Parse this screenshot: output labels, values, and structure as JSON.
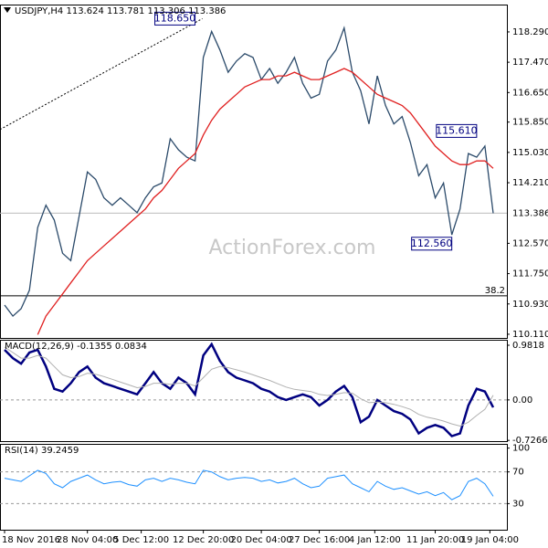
{
  "chart_data": [
    {
      "type": "line",
      "title": "USDJPY,H4  113.624 113.781 113.306 113.386",
      "watermark": "ActionForex.com",
      "xlim": [
        0,
        59
      ],
      "ylim": [
        110.01,
        119.03
      ],
      "yticks": [
        {
          "value": 118.29,
          "label": "118.290"
        },
        {
          "value": 117.47,
          "label": "117.470"
        },
        {
          "value": 116.65,
          "label": "116.650"
        },
        {
          "value": 115.85,
          "label": "115.850"
        },
        {
          "value": 115.03,
          "label": "115.030"
        },
        {
          "value": 114.21,
          "label": "114.210"
        },
        {
          "value": 112.57,
          "label": "112.570"
        },
        {
          "value": 111.75,
          "label": "111.750"
        },
        {
          "value": 110.93,
          "label": "110.930"
        },
        {
          "value": 110.11,
          "label": "110.110"
        }
      ],
      "series": [
        {
          "name": "Close",
          "color": "#2b4a6a",
          "values": [
            110.9,
            110.6,
            110.8,
            111.3,
            113.0,
            113.6,
            113.2,
            112.3,
            112.1,
            113.3,
            114.5,
            114.3,
            113.8,
            113.6,
            113.8,
            113.6,
            113.4,
            113.8,
            114.1,
            114.2,
            115.4,
            115.1,
            114.9,
            114.8,
            117.6,
            118.3,
            117.8,
            117.2,
            117.5,
            117.7,
            117.6,
            117.0,
            117.3,
            116.9,
            117.2,
            117.6,
            116.9,
            116.5,
            116.6,
            117.5,
            117.8,
            118.4,
            117.2,
            116.7,
            115.8,
            117.1,
            116.3,
            115.8,
            116.0,
            115.3,
            114.4,
            114.7,
            113.8,
            114.2,
            112.8,
            113.5,
            115.0,
            114.9,
            115.2,
            113.386
          ]
        },
        {
          "name": "MA",
          "color": "#e02020",
          "values": [
            null,
            null,
            null,
            null,
            110.1,
            110.6,
            110.9,
            111.2,
            111.5,
            111.8,
            112.1,
            112.3,
            112.5,
            112.7,
            112.9,
            113.1,
            113.3,
            113.5,
            113.8,
            114.0,
            114.3,
            114.6,
            114.8,
            115.0,
            115.5,
            115.9,
            116.2,
            116.4,
            116.6,
            116.8,
            116.9,
            117.0,
            117.0,
            117.1,
            117.1,
            117.2,
            117.1,
            117.0,
            117.0,
            117.1,
            117.2,
            117.3,
            117.2,
            117.0,
            116.8,
            116.6,
            116.5,
            116.4,
            116.3,
            116.1,
            115.8,
            115.5,
            115.2,
            115.0,
            114.8,
            114.7,
            114.7,
            114.8,
            114.8,
            114.6
          ]
        }
      ],
      "annotations": [
        {
          "text": "118.650",
          "x": 23,
          "y": 118.65
        },
        {
          "text": "115.610",
          "x": 57,
          "y": 115.61
        },
        {
          "text": "112.560",
          "x": 54,
          "y": 112.56
        }
      ],
      "last": {
        "value": 113.386,
        "label": "113.386"
      },
      "level": {
        "value": 111.15,
        "label": "38.2"
      },
      "trendline": {
        "x": [
          0,
          23
        ],
        "y": [
          115.65,
          118.65
        ]
      }
    },
    {
      "type": "line",
      "title": "MACD(12,26,9) -0.1355 0.0834",
      "xlim": [
        0,
        59
      ],
      "ylim": [
        -0.74,
        1.08
      ],
      "yticks": [
        0.9818,
        {
          "value": 0,
          "label": "0.00"
        },
        -0.7266
      ],
      "hlines": [
        0
      ],
      "series": [
        {
          "name": "MACD",
          "color": "#000080",
          "width": 2.5,
          "values": [
            0.9,
            0.75,
            0.65,
            0.85,
            0.9,
            0.6,
            0.2,
            0.15,
            0.3,
            0.5,
            0.6,
            0.4,
            0.3,
            0.25,
            0.2,
            0.15,
            0.1,
            0.3,
            0.5,
            0.3,
            0.2,
            0.4,
            0.3,
            0.1,
            0.8,
            1.0,
            0.7,
            0.5,
            0.4,
            0.35,
            0.3,
            0.2,
            0.15,
            0.05,
            0.0,
            0.05,
            0.1,
            0.05,
            -0.1,
            0.0,
            0.15,
            0.25,
            0.05,
            -0.4,
            -0.3,
            0.0,
            -0.1,
            -0.2,
            -0.25,
            -0.35,
            -0.6,
            -0.5,
            -0.45,
            -0.5,
            -0.65,
            -0.6,
            -0.1,
            0.2,
            0.15,
            -0.1355
          ]
        },
        {
          "name": "Signal",
          "color": "#b0b0b0",
          "width": 1,
          "values": [
            0.95,
            0.85,
            0.75,
            0.75,
            0.8,
            0.75,
            0.6,
            0.45,
            0.4,
            0.42,
            0.48,
            0.46,
            0.42,
            0.37,
            0.32,
            0.27,
            0.22,
            0.24,
            0.3,
            0.3,
            0.28,
            0.3,
            0.3,
            0.25,
            0.4,
            0.55,
            0.6,
            0.58,
            0.54,
            0.5,
            0.45,
            0.4,
            0.35,
            0.29,
            0.23,
            0.19,
            0.17,
            0.15,
            0.1,
            0.08,
            0.1,
            0.13,
            0.12,
            0.02,
            -0.05,
            -0.04,
            -0.05,
            -0.08,
            -0.12,
            -0.17,
            -0.26,
            -0.31,
            -0.34,
            -0.38,
            -0.43,
            -0.47,
            -0.4,
            -0.28,
            -0.17,
            0.0834
          ]
        }
      ]
    },
    {
      "type": "line",
      "title": "RSI(14) 39.2459",
      "xlim": [
        0,
        59
      ],
      "ylim": [
        -2.9,
        105.3
      ],
      "yticks": [
        100,
        70,
        30
      ],
      "hlines": [
        70,
        30
      ],
      "xticks": [
        {
          "value": 0,
          "label": "18 Nov 2016"
        },
        {
          "value": 10,
          "label": "28 Nov 04:00"
        },
        {
          "value": 16.5,
          "label": "5 Dec 12:00"
        },
        {
          "value": 24,
          "label": "12 Dec 20:00"
        },
        {
          "value": 31,
          "label": "20 Dec 04:00"
        },
        {
          "value": 38,
          "label": "27 Dec 16:00"
        },
        {
          "value": 44.7,
          "label": "4 Jan 12:00"
        },
        {
          "value": 52,
          "label": "11 Jan 20:00"
        },
        {
          "value": 58.6,
          "label": "19 Jan 04:00"
        }
      ],
      "series": [
        {
          "name": "RSI",
          "color": "#1e90ff",
          "width": 1,
          "values": [
            62,
            60,
            58,
            65,
            72,
            68,
            55,
            50,
            58,
            62,
            66,
            60,
            55,
            57,
            58,
            54,
            52,
            60,
            62,
            58,
            62,
            60,
            57,
            55,
            72,
            70,
            64,
            60,
            62,
            63,
            62,
            58,
            60,
            56,
            58,
            62,
            55,
            50,
            52,
            62,
            64,
            66,
            55,
            50,
            45,
            58,
            52,
            48,
            50,
            46,
            42,
            45,
            40,
            44,
            35,
            40,
            58,
            62,
            55,
            39.2459
          ]
        }
      ]
    }
  ]
}
